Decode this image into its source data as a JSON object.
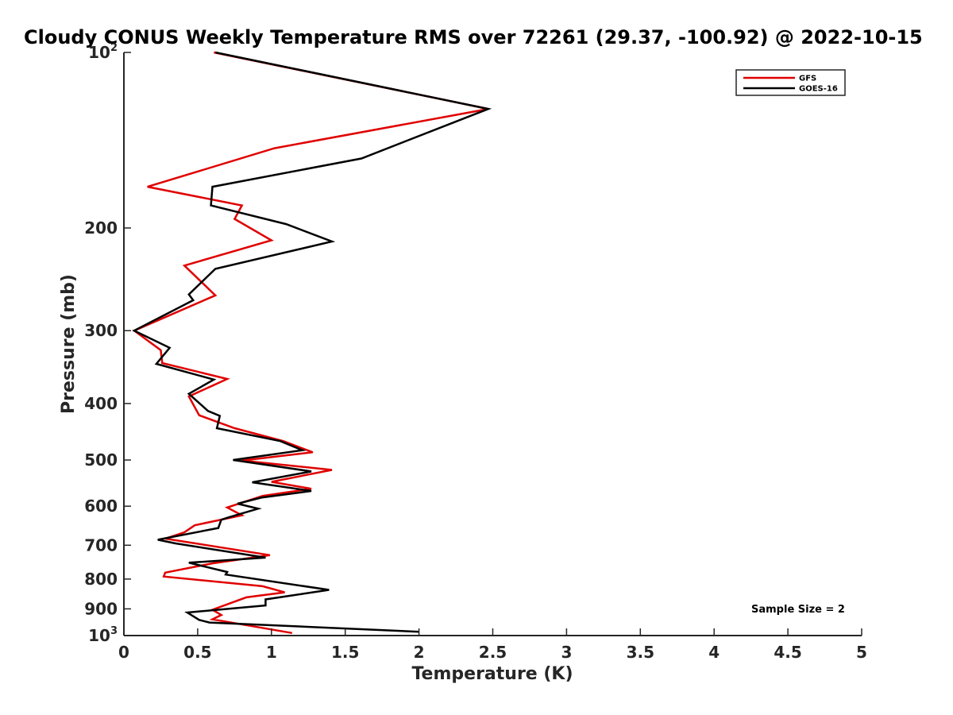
{
  "chart_data": {
    "type": "line",
    "title": "Cloudy CONUS Weekly Temperature RMS over 72261 (29.37, -100.92) @ 2022-10-15",
    "xlabel": "Temperature (K)",
    "ylabel": "Pressure (mb)",
    "xlim": [
      0,
      5
    ],
    "ylim": [
      100,
      1000
    ],
    "y_scale": "log",
    "y_reversed": true,
    "x_ticks": [
      "0",
      "0.5",
      "1",
      "1.5",
      "2",
      "2.5",
      "3",
      "3.5",
      "4",
      "4.5",
      "5"
    ],
    "y_ticks": [
      {
        "value": 100,
        "base": "10",
        "exp": "2"
      },
      {
        "value": 200,
        "label": "200"
      },
      {
        "value": 300,
        "label": "300"
      },
      {
        "value": 400,
        "label": "400"
      },
      {
        "value": 500,
        "label": "500"
      },
      {
        "value": 600,
        "label": "600"
      },
      {
        "value": 700,
        "label": "700"
      },
      {
        "value": 800,
        "label": "800"
      },
      {
        "value": 900,
        "label": "900"
      },
      {
        "value": 1000,
        "base": "10",
        "exp": "3"
      }
    ],
    "grid": false,
    "legend_position": "top-right",
    "series": [
      {
        "name": "GFS",
        "color": "#e00000",
        "x": [
          0.61,
          2.47,
          1.02,
          0.16,
          0.8,
          0.75,
          1.0,
          0.41,
          0.62,
          0.07,
          0.25,
          0.26,
          0.7,
          0.44,
          0.51,
          0.75,
          1.08,
          1.28,
          0.8,
          1.41,
          1.0,
          1.27,
          0.94,
          0.7,
          0.8,
          0.48,
          0.41,
          0.28,
          0.99,
          0.6,
          0.28,
          0.27,
          0.94,
          1.09,
          0.83,
          0.6,
          0.66,
          0.6,
          1.14
        ],
        "y": [
          100,
          125,
          146,
          170,
          183,
          193,
          210,
          232,
          261,
          300,
          324,
          341,
          363,
          389,
          419,
          441,
          464,
          485,
          501,
          520,
          545,
          560,
          576,
          603,
          622,
          647,
          665,
          682,
          728,
          752,
          780,
          792,
          823,
          843,
          860,
          903,
          922,
          938,
          990
        ]
      },
      {
        "name": "GOES-16",
        "color": "#000000",
        "x": [
          0.62,
          2.47,
          1.61,
          0.6,
          0.59,
          1.1,
          1.41,
          0.62,
          0.44,
          0.47,
          0.07,
          0.31,
          0.22,
          0.61,
          0.44,
          0.57,
          0.65,
          0.63,
          1.06,
          1.21,
          0.74,
          1.27,
          0.87,
          1.27,
          0.93,
          0.77,
          0.91,
          0.71,
          0.66,
          0.64,
          0.23,
          0.35,
          0.96,
          0.44,
          0.7,
          0.69,
          1.39,
          0.96,
          0.96,
          0.43,
          0.51,
          0.58,
          2.0
        ],
        "y": [
          100,
          125,
          152,
          170,
          183,
          197,
          211,
          235,
          260,
          266,
          300,
          321,
          342,
          364,
          385,
          412,
          420,
          441,
          464,
          481,
          500,
          523,
          546,
          565,
          580,
          594,
          606,
          627,
          633,
          654,
          685,
          695,
          735,
          750,
          778,
          786,
          835,
          867,
          888,
          913,
          940,
          950,
          985
        ]
      }
    ],
    "annotation": "Sample Size = 2"
  }
}
